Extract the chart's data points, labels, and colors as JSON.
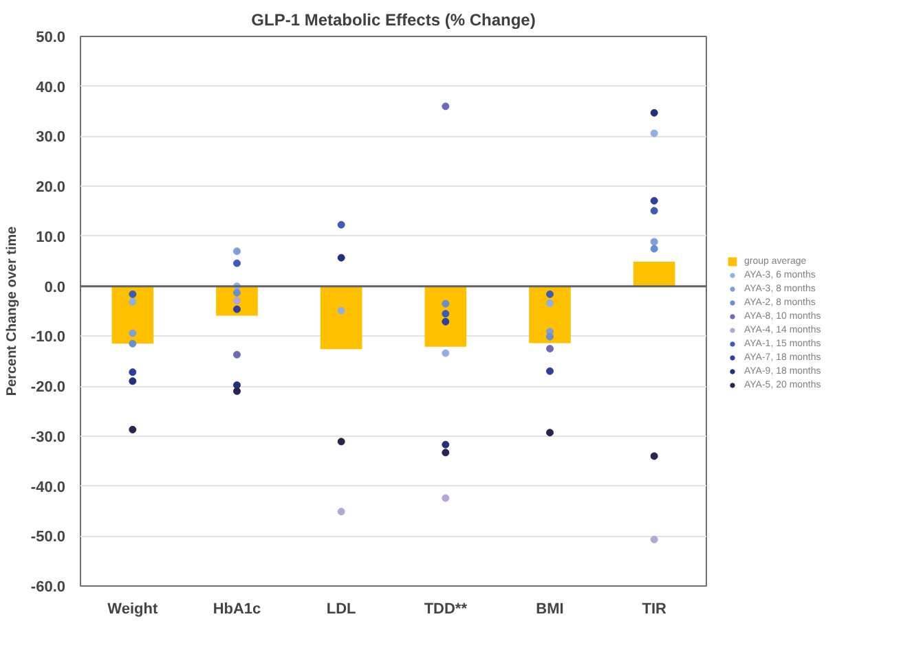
{
  "chart_data": {
    "type": "bar",
    "title": "GLP-1 Metabolic Effects (% Change)",
    "ylabel": "Percent Change over time",
    "categories": [
      "Weight",
      "HbA1c",
      "LDL",
      "TDD**",
      "BMI",
      "TIR"
    ],
    "ylim": [
      -60,
      50
    ],
    "yticks": [
      {
        "value": -60,
        "label": "-60.0"
      },
      {
        "value": -50,
        "label": "-50.0"
      },
      {
        "value": -40,
        "label": "-40.0"
      },
      {
        "value": -30,
        "label": "-30.0"
      },
      {
        "value": -20,
        "label": "-20.0"
      },
      {
        "value": -10,
        "label": "-10.0"
      },
      {
        "value": 0,
        "label": "0.0"
      },
      {
        "value": 10,
        "label": "10.0"
      },
      {
        "value": 20,
        "label": "20.0"
      },
      {
        "value": 30,
        "label": "30.0"
      },
      {
        "value": 40,
        "label": "40.0"
      },
      {
        "value": 50,
        "label": "50.0"
      }
    ],
    "grid": "y",
    "legend": "right",
    "marker": "circle",
    "series": [
      {
        "name": "group average",
        "color": "#ffc000",
        "values": [
          -11.5,
          -5.9,
          -12.6,
          -12.1,
          -11.4,
          4.9
        ]
      },
      {
        "name": "AYA-3, 6 months",
        "type": "scatter",
        "color": "#8fb0e0",
        "values": [
          -3.1,
          0.0,
          -4.9,
          -13.4,
          -3.4,
          30.6
        ]
      },
      {
        "name": "AYA-3, 8 months",
        "type": "scatter",
        "color": "#7f9fd8",
        "values": [
          -9.4,
          7.0,
          null,
          null,
          -9.1,
          8.9
        ]
      },
      {
        "name": "AYA-2, 8 months",
        "type": "scatter",
        "color": "#6a8fd0",
        "values": [
          -11.5,
          -1.3,
          null,
          -3.5,
          -10.1,
          7.5
        ]
      },
      {
        "name": "AYA-8, 10 months",
        "type": "scatter",
        "color": "#6f6ab8",
        "values": [
          null,
          -13.7,
          null,
          36.0,
          -12.5,
          null
        ]
      },
      {
        "name": "AYA-4, 14 months",
        "type": "scatter",
        "color": "#b4a6d6",
        "values": [
          null,
          -2.9,
          -45.1,
          -42.4,
          null,
          -50.7
        ]
      },
      {
        "name": "AYA-1, 15 months",
        "type": "scatter",
        "color": "#3d5cb8",
        "values": [
          -1.6,
          4.6,
          12.3,
          -5.5,
          -1.6,
          15.1
        ]
      },
      {
        "name": "AYA-7, 18 months",
        "type": "scatter",
        "color": "#2e3f9e",
        "values": [
          -17.2,
          -4.6,
          null,
          -7.1,
          -17.0,
          17.1
        ]
      },
      {
        "name": "AYA-9, 18 months",
        "type": "scatter",
        "color": "#23307a",
        "values": [
          -19.0,
          -19.8,
          5.7,
          -31.7,
          null,
          34.7
        ]
      },
      {
        "name": "AYA-5, 20 months",
        "type": "scatter",
        "color": "#2a2450",
        "values": [
          -28.7,
          -21.0,
          -31.1,
          -33.3,
          -29.3,
          -34.0
        ]
      }
    ]
  }
}
